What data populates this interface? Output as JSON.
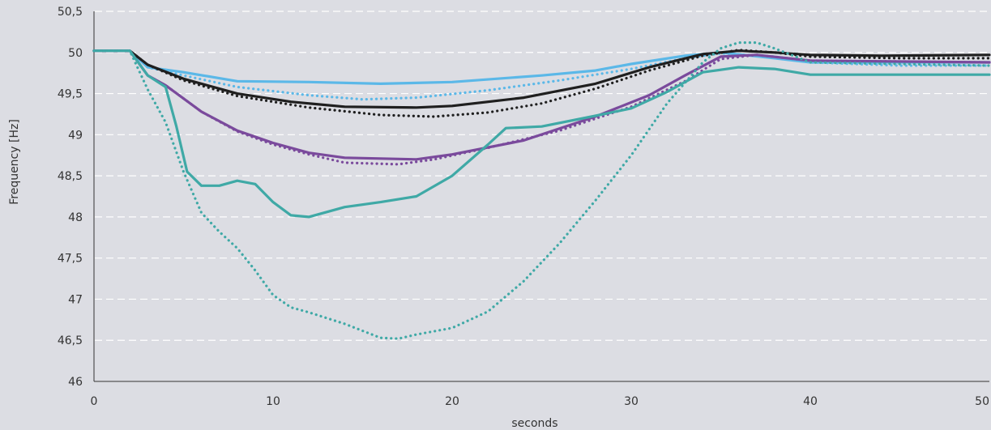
{
  "chart_data": {
    "type": "line",
    "xlabel": "seconds",
    "ylabel": "Frequency [Hz]",
    "xlim": [
      0,
      50
    ],
    "ylim": [
      46,
      50.5
    ],
    "grid": true,
    "grid_axis": "y",
    "grid_style": "dashed",
    "x_ticks": [
      0,
      10,
      20,
      30,
      40,
      50
    ],
    "x_tick_labels": [
      "0",
      "10",
      "20",
      "30",
      "40",
      "50"
    ],
    "y_ticks": [
      46,
      46.5,
      47,
      47.5,
      48,
      48.5,
      49,
      49.5,
      50,
      50.5
    ],
    "y_tick_labels": [
      "46",
      "46,5",
      "47",
      "47,5",
      "48",
      "48,5",
      "49",
      "49,5",
      "50",
      "50,5"
    ],
    "series": [
      {
        "color": "#5bb8e8",
        "style": "solid",
        "x": [
          0,
          2,
          3,
          5,
          8,
          12,
          16,
          20,
          25,
          28,
          30,
          33,
          35,
          38,
          40,
          45,
          50
        ],
        "y": [
          50.02,
          50.02,
          49.82,
          49.76,
          49.65,
          49.64,
          49.62,
          49.64,
          49.72,
          49.78,
          49.86,
          49.96,
          50.0,
          49.93,
          49.88,
          49.88,
          49.88
        ]
      },
      {
        "color": "#5bb8e8",
        "style": "dotted",
        "x": [
          0,
          2,
          3,
          5,
          8,
          12,
          15,
          18,
          22,
          26,
          30,
          33,
          35,
          38,
          40,
          45,
          50
        ],
        "y": [
          50.02,
          50.02,
          49.82,
          49.72,
          49.58,
          49.48,
          49.43,
          49.45,
          49.54,
          49.66,
          49.8,
          49.93,
          49.99,
          49.95,
          49.88,
          49.84,
          49.84
        ]
      },
      {
        "color": "#1f1f1f",
        "style": "solid",
        "x": [
          0,
          2,
          3,
          5,
          8,
          11,
          14,
          18,
          20,
          24,
          28,
          31,
          34,
          36,
          38,
          40,
          44,
          50
        ],
        "y": [
          50.02,
          50.02,
          49.85,
          49.68,
          49.5,
          49.4,
          49.34,
          49.33,
          49.35,
          49.45,
          49.62,
          49.82,
          49.98,
          50.02,
          50.0,
          49.97,
          49.96,
          49.97
        ]
      },
      {
        "color": "#1f1f1f",
        "style": "dotted",
        "x": [
          0,
          2,
          3,
          5,
          8,
          12,
          16,
          19,
          22,
          25,
          28,
          31,
          34,
          36,
          38,
          40,
          45,
          50
        ],
        "y": [
          50.02,
          50.02,
          49.85,
          49.66,
          49.47,
          49.33,
          49.24,
          49.22,
          49.27,
          49.38,
          49.56,
          49.78,
          49.96,
          50.03,
          50.0,
          49.95,
          49.93,
          49.93
        ]
      },
      {
        "color": "#7a4a9c",
        "style": "solid",
        "x": [
          0,
          2,
          3,
          4,
          6,
          8,
          10,
          12,
          14,
          18,
          20,
          24,
          28,
          31,
          33,
          35,
          37,
          40,
          50
        ],
        "y": [
          50.02,
          50.02,
          49.72,
          49.6,
          49.28,
          49.05,
          48.9,
          48.78,
          48.72,
          48.7,
          48.76,
          48.93,
          49.22,
          49.48,
          49.72,
          49.95,
          49.97,
          49.9,
          49.88
        ]
      },
      {
        "color": "#7a4a9c",
        "style": "dotted",
        "x": [
          0,
          2,
          3,
          4,
          6,
          8,
          10,
          12,
          14,
          17,
          19,
          22,
          26,
          30,
          33,
          35,
          37,
          40,
          50
        ],
        "y": [
          50.02,
          50.02,
          49.72,
          49.6,
          49.28,
          49.04,
          48.88,
          48.76,
          48.66,
          48.64,
          48.7,
          48.84,
          49.05,
          49.34,
          49.65,
          49.92,
          49.97,
          49.9,
          49.88
        ]
      },
      {
        "color": "#3fa9a6",
        "style": "solid",
        "x": [
          0,
          2,
          3,
          4,
          4.6,
          5.2,
          6,
          7,
          8,
          9,
          10,
          11,
          12,
          14,
          16,
          18,
          20,
          22,
          23,
          25,
          28,
          30,
          32,
          34,
          36,
          38,
          40,
          45,
          50
        ],
        "y": [
          50.02,
          50.02,
          49.72,
          49.58,
          49.1,
          48.55,
          48.38,
          48.38,
          48.44,
          48.4,
          48.18,
          48.02,
          48.0,
          48.12,
          48.18,
          48.25,
          48.5,
          48.88,
          49.08,
          49.1,
          49.23,
          49.32,
          49.52,
          49.76,
          49.82,
          49.8,
          49.73,
          49.73,
          49.73
        ]
      },
      {
        "color": "#3fa9a6",
        "style": "dotted",
        "x": [
          0,
          2,
          3,
          4,
          5,
          6,
          7,
          8,
          9,
          10,
          11,
          12,
          14,
          16,
          17,
          18,
          20,
          22,
          24,
          26,
          28,
          30,
          32,
          34,
          35,
          36,
          37,
          38,
          40,
          50
        ],
        "y": [
          50.02,
          50.02,
          49.55,
          49.15,
          48.55,
          48.05,
          47.82,
          47.62,
          47.35,
          47.05,
          46.9,
          46.84,
          46.7,
          46.53,
          46.52,
          46.57,
          46.65,
          46.85,
          47.22,
          47.68,
          48.2,
          48.75,
          49.38,
          49.88,
          50.05,
          50.12,
          50.12,
          50.05,
          49.88,
          49.84
        ]
      }
    ]
  }
}
